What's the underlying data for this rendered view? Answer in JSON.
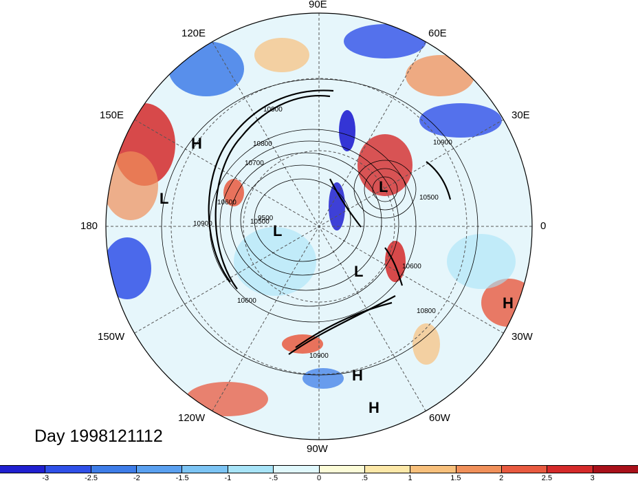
{
  "title": "Day 1998121112",
  "longitude_labels": {
    "n90e": "90E",
    "n60e": "60E",
    "n30e": "30E",
    "e0": "0",
    "n30w": "30W",
    "n60w": "60W",
    "n90w": "90W",
    "n120w": "120W",
    "n150w": "150W",
    "w180": "180",
    "n150e": "150E",
    "n120e": "120E"
  },
  "pressure_centers": [
    "H",
    "L",
    "L",
    "L",
    "L",
    "H",
    "H",
    "H"
  ],
  "contour_labels": [
    "10900",
    "10800",
    "10700",
    "10600",
    "10500",
    "9500",
    "10900",
    "10600",
    "10800",
    "10900",
    "10500",
    "10600",
    "10900"
  ],
  "colorbar": {
    "ticks": [
      "-3",
      "-2.5",
      "-2",
      "-1.5",
      "-1",
      "-.5",
      "0",
      ".5",
      "1",
      "1.5",
      "2",
      "2.5",
      "3"
    ],
    "colors": [
      "#2020d0",
      "#2f50e8",
      "#3e7de8",
      "#5aa0f0",
      "#7cc4f4",
      "#a8e4f8",
      "#e0f8fc",
      "#fcfcd8",
      "#fce8a8",
      "#f8c07c",
      "#f0905a",
      "#e85a40",
      "#d42a2a",
      "#a8101a"
    ]
  }
}
